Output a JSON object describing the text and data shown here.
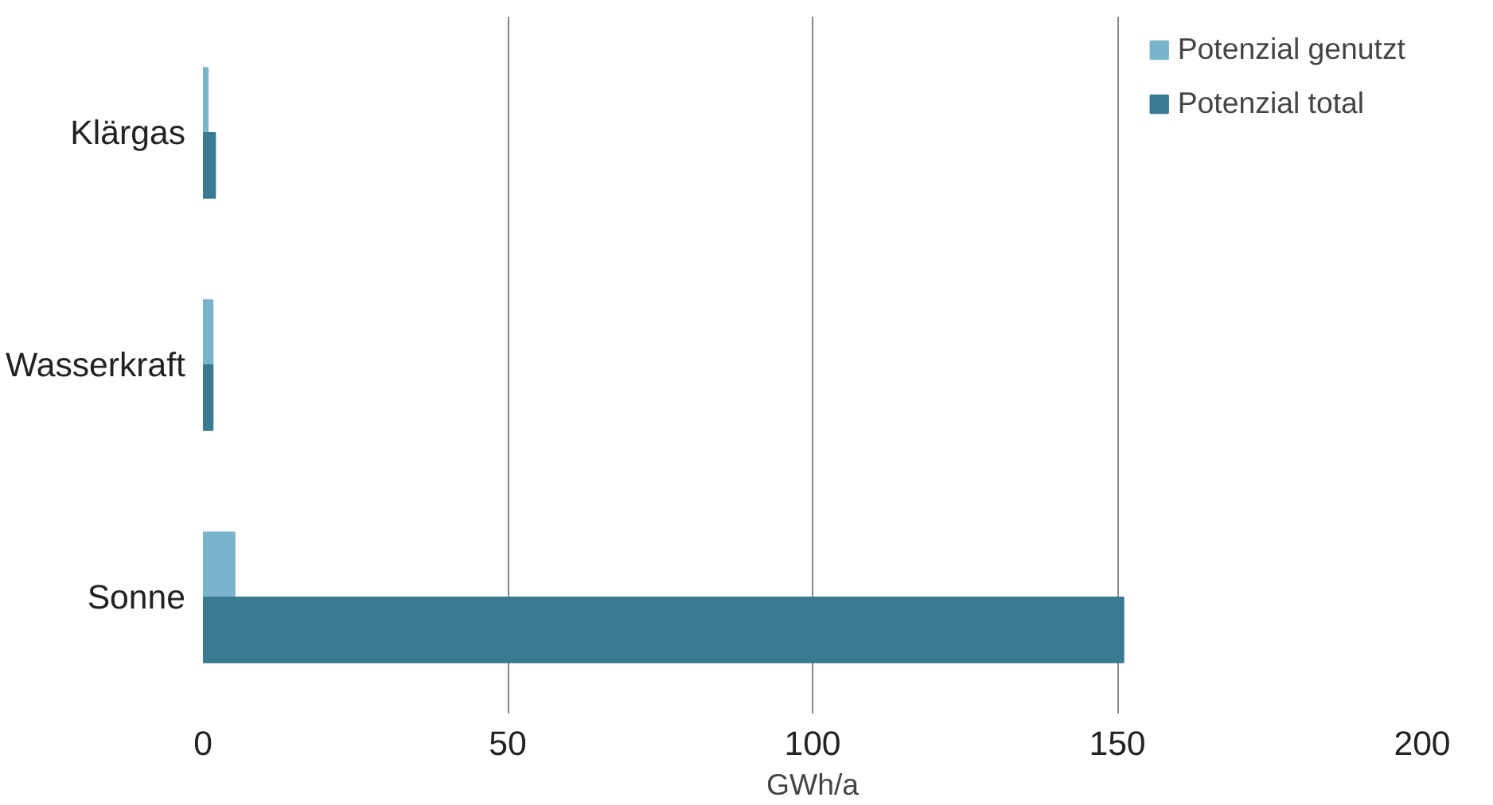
{
  "chart_data": {
    "type": "bar",
    "orientation": "horizontal",
    "xlabel": "GWh/a",
    "categories": [
      "Klärgas",
      "Wasserkraft",
      "Sonne"
    ],
    "series": [
      {
        "name": "Potenzial genutzt",
        "color": "#7ab4cc",
        "values": [
          0.8,
          1.6,
          5.2
        ]
      },
      {
        "name": "Potenzial total",
        "color": "#3a7a93",
        "values": [
          2.0,
          1.6,
          151
        ]
      }
    ],
    "xlim": [
      0,
      200
    ],
    "xticks": [
      0,
      50,
      100,
      150,
      200
    ],
    "grid": "x",
    "legend": "top right"
  }
}
